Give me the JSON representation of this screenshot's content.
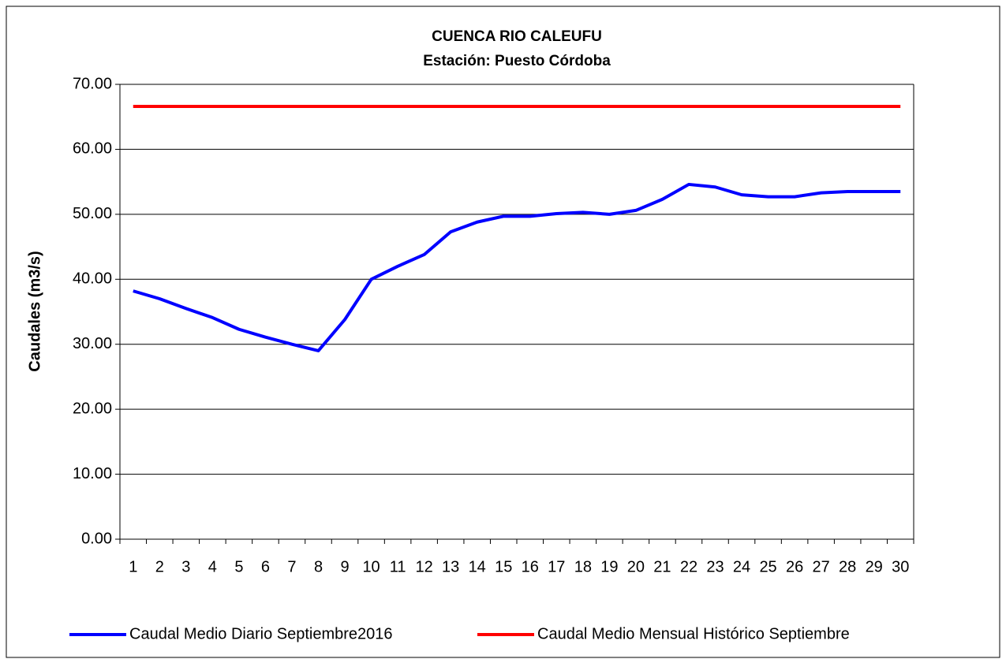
{
  "chart_data": {
    "type": "line",
    "title": "CUENCA RIO CALEUFU",
    "subtitle": "Estación: Puesto Córdoba",
    "y_label": "Caudales (m3/s)",
    "categories": [
      "1",
      "2",
      "3",
      "4",
      "5",
      "6",
      "7",
      "8",
      "9",
      "10",
      "11",
      "12",
      "13",
      "14",
      "15",
      "16",
      "17",
      "18",
      "19",
      "20",
      "21",
      "22",
      "23",
      "24",
      "25",
      "26",
      "27",
      "28",
      "29",
      "30"
    ],
    "series": [
      {
        "name": "Caudal Medio Diario Septiembre2016",
        "color": "#0000ff",
        "values": [
          38.2,
          37.0,
          35.5,
          34.1,
          32.3,
          31.1,
          30.0,
          29.0,
          33.8,
          40.0,
          42.0,
          43.8,
          47.3,
          48.8,
          49.7,
          49.7,
          50.1,
          50.3,
          50.0,
          50.6,
          52.3,
          54.6,
          54.2,
          53.0,
          52.7,
          52.7,
          53.3,
          53.5,
          53.5,
          53.5
        ]
      },
      {
        "name": "Caudal Medio Mensual Histórico Septiembre",
        "color": "#ff0000",
        "values": [
          66.6,
          66.6,
          66.6,
          66.6,
          66.6,
          66.6,
          66.6,
          66.6,
          66.6,
          66.6,
          66.6,
          66.6,
          66.6,
          66.6,
          66.6,
          66.6,
          66.6,
          66.6,
          66.6,
          66.6,
          66.6,
          66.6,
          66.6,
          66.6,
          66.6,
          66.6,
          66.6,
          66.6,
          66.6,
          66.6
        ]
      }
    ],
    "ylim": [
      0,
      70
    ],
    "yticks": [
      {
        "value": 0,
        "label": "0.00"
      },
      {
        "value": 10,
        "label": "10.00"
      },
      {
        "value": 20,
        "label": "20.00"
      },
      {
        "value": 30,
        "label": "30.00"
      },
      {
        "value": 40,
        "label": "40.00"
      },
      {
        "value": 50,
        "label": "50.00"
      },
      {
        "value": 60,
        "label": "60.00"
      },
      {
        "value": 70,
        "label": "70.00"
      }
    ],
    "grid": true,
    "legend": "bottom"
  }
}
